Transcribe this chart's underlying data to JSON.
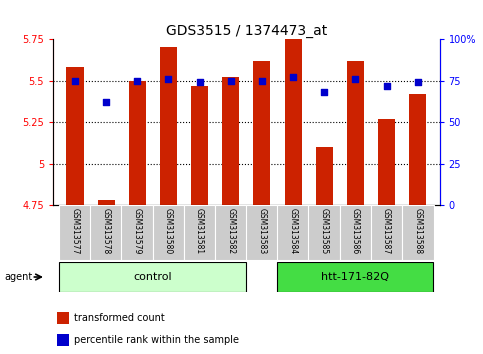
{
  "title": "GDS3515 / 1374473_at",
  "samples": [
    "GSM313577",
    "GSM313578",
    "GSM313579",
    "GSM313580",
    "GSM313581",
    "GSM313582",
    "GSM313583",
    "GSM313584",
    "GSM313585",
    "GSM313586",
    "GSM313587",
    "GSM313588"
  ],
  "bar_values": [
    5.58,
    4.78,
    5.5,
    5.7,
    5.47,
    5.52,
    5.62,
    5.75,
    5.1,
    5.62,
    5.27,
    5.42
  ],
  "percentiles": [
    75,
    62,
    75,
    76,
    74,
    75,
    75,
    77,
    68,
    76,
    72,
    74
  ],
  "bar_bottom": 4.75,
  "ylim_left": [
    4.75,
    5.75
  ],
  "ylim_right": [
    0,
    100
  ],
  "yticks_left": [
    4.75,
    5.0,
    5.25,
    5.5,
    5.75
  ],
  "ytick_labels_left": [
    "4.75",
    "5",
    "5.25",
    "5.5",
    "5.75"
  ],
  "yticks_right": [
    0,
    25,
    50,
    75,
    100
  ],
  "ytick_labels_right": [
    "0",
    "25",
    "50",
    "75",
    "100%"
  ],
  "bar_color": "#cc2200",
  "percentile_color": "#0000cc",
  "control_label": "control",
  "htt_label": "htt-171-82Q",
  "agent_label": "agent",
  "legend_bar_label": "transformed count",
  "legend_pct_label": "percentile rank within the sample",
  "control_color": "#ccffcc",
  "htt_color": "#44dd44",
  "label_box_color": "#cccccc",
  "bar_width": 0.55,
  "dotted_grid_lines": [
    5.0,
    5.25,
    5.5
  ],
  "figure_bg": "#ffffff",
  "title_fontsize": 10,
  "axis_fontsize": 7,
  "label_fontsize": 5.5,
  "group_fontsize": 8,
  "legend_fontsize": 7
}
